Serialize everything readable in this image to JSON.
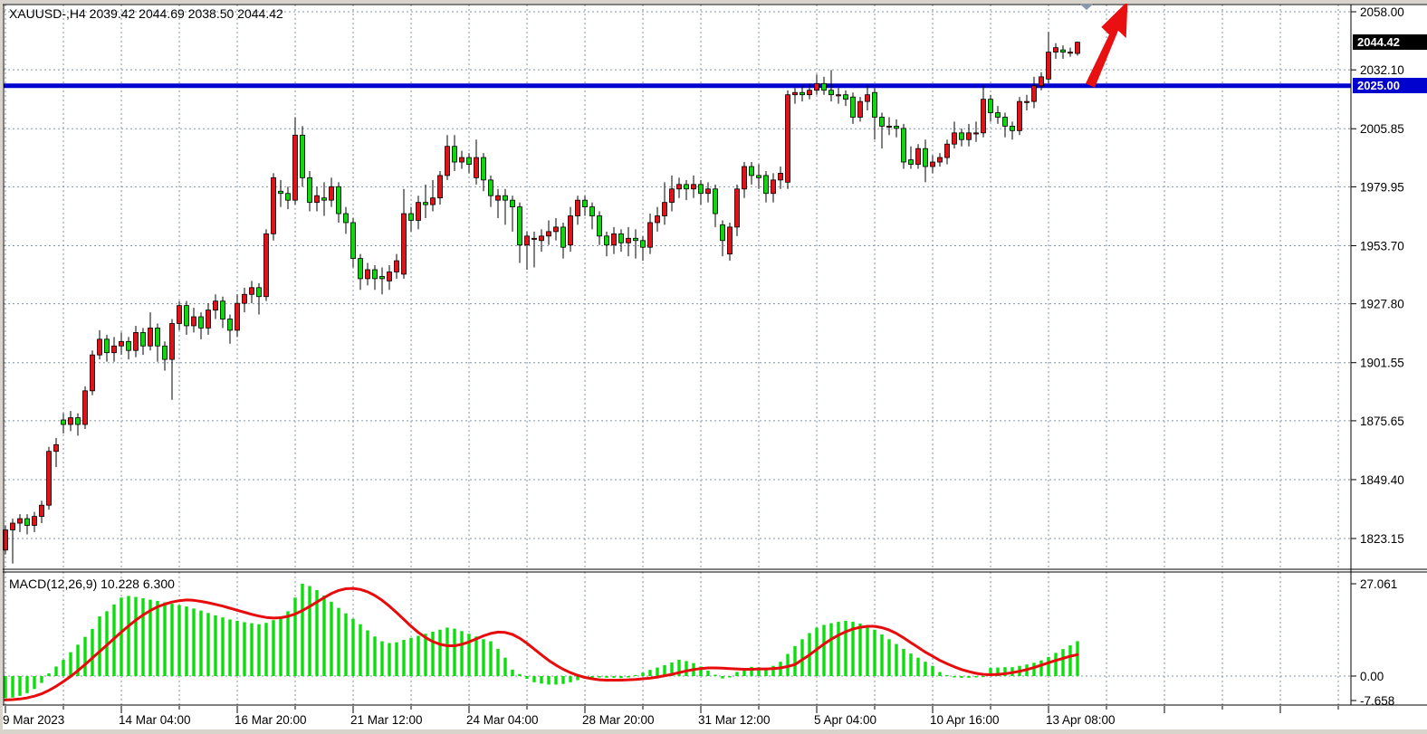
{
  "header": {
    "symbol_title": "XAUUSD-,H4 2039.42 2044.69 2038.50 2044.42"
  },
  "macd_pane": {
    "label_full": "MACD(12,26,9) 10.228 6.300"
  },
  "tags": {
    "last_price": "2044.42",
    "hline_price": "2025.00"
  },
  "axis": {
    "price_ticks": [
      "2058.00",
      "2032.10",
      "2005.85",
      "1979.95",
      "1953.70",
      "1927.80",
      "1901.55",
      "1875.65",
      "1849.40",
      "1823.15"
    ],
    "time_ticks": [
      "9 Mar 2023",
      "14 Mar 04:00",
      "16 Mar 20:00",
      "21 Mar 12:00",
      "24 Mar 04:00",
      "28 Mar 20:00",
      "31 Mar 12:00",
      "5 Apr 04:00",
      "10 Apr 16:00",
      "13 Apr 08:00"
    ],
    "macd_ticks": [
      "27.061",
      "0.00",
      "-7.658"
    ]
  },
  "colors": {
    "bull": "#e31219",
    "bear": "#0fd60f",
    "wick": "#000000",
    "grid": "#8295aa",
    "hline": "#0202cf",
    "macd_hist": "#0ddd0d",
    "macd_signal": "#e80b0b",
    "tag_last_bg": "#000000",
    "tag_line_bg": "#0202cf",
    "arrow": "#e81010",
    "shift_marker": "#8898a8"
  },
  "chart_data": {
    "type": "candlestick",
    "symbol": "XAUUSD-",
    "timeframe": "H4",
    "last_ohlc": {
      "open": 2039.42,
      "high": 2044.69,
      "low": 2038.5,
      "close": 2044.42
    },
    "horizontal_line": 2025.0,
    "price_axis_range": [
      1823.15,
      2058.0
    ],
    "grid": true,
    "candles_ohlc": [
      [
        1818,
        1829,
        1816,
        1827
      ],
      [
        1827,
        1832,
        1812,
        1830
      ],
      [
        1830,
        1834,
        1826,
        1832
      ],
      [
        1832,
        1834,
        1825,
        1829
      ],
      [
        1829,
        1835,
        1826,
        1833
      ],
      [
        1833,
        1840,
        1830,
        1838
      ],
      [
        1838,
        1864,
        1836,
        1862
      ],
      [
        1862,
        1868,
        1855,
        1865
      ],
      [
        1876,
        1879,
        1870,
        1874
      ],
      [
        1874,
        1880,
        1871,
        1877
      ],
      [
        1877,
        1879,
        1869,
        1874
      ],
      [
        1874,
        1891,
        1872,
        1889
      ],
      [
        1889,
        1907,
        1887,
        1905
      ],
      [
        1905,
        1916,
        1903,
        1912
      ],
      [
        1912,
        1914,
        1902,
        1906
      ],
      [
        1906,
        1913,
        1902,
        1909
      ],
      [
        1909,
        1915,
        1905,
        1911
      ],
      [
        1911,
        1913,
        1903,
        1907
      ],
      [
        1907,
        1918,
        1904,
        1915
      ],
      [
        1915,
        1917,
        1905,
        1909
      ],
      [
        1909,
        1924,
        1907,
        1917
      ],
      [
        1917,
        1919,
        1902,
        1909
      ],
      [
        1909,
        1911,
        1898,
        1903
      ],
      [
        1903,
        1921,
        1885,
        1919
      ],
      [
        1919,
        1929,
        1916,
        1927
      ],
      [
        1927,
        1929,
        1914,
        1918
      ],
      [
        1918,
        1926,
        1915,
        1922
      ],
      [
        1922,
        1924,
        1912,
        1917
      ],
      [
        1917,
        1928,
        1914,
        1925
      ],
      [
        1925,
        1932,
        1921,
        1929
      ],
      [
        1929,
        1931,
        1917,
        1921
      ],
      [
        1921,
        1923,
        1910,
        1916
      ],
      [
        1916,
        1932,
        1913,
        1928
      ],
      [
        1928,
        1935,
        1924,
        1932
      ],
      [
        1932,
        1938,
        1928,
        1935
      ],
      [
        1935,
        1937,
        1923,
        1931
      ],
      [
        1931,
        1961,
        1929,
        1959
      ],
      [
        1959,
        1986,
        1956,
        1984
      ],
      [
        1978,
        1983,
        1971,
        1977
      ],
      [
        1977,
        1980,
        1970,
        1974
      ],
      [
        1974,
        2011,
        1972,
        2003
      ],
      [
        2003,
        2007,
        1980,
        1984
      ],
      [
        1984,
        1987,
        1969,
        1973
      ],
      [
        1973,
        1980,
        1969,
        1976
      ],
      [
        1975,
        1982,
        1967,
        1974
      ],
      [
        1974,
        1984,
        1971,
        1980
      ],
      [
        1980,
        1982,
        1964,
        1968
      ],
      [
        1968,
        1971,
        1959,
        1964
      ],
      [
        1964,
        1966,
        1944,
        1948
      ],
      [
        1948,
        1950,
        1934,
        1939
      ],
      [
        1939,
        1946,
        1936,
        1943
      ],
      [
        1943,
        1945,
        1934,
        1939
      ],
      [
        1940,
        1944,
        1932,
        1939
      ],
      [
        1938,
        1945,
        1934,
        1942
      ],
      [
        1942,
        1950,
        1939,
        1947
      ],
      [
        1941,
        1979,
        1939,
        1968
      ],
      [
        1968,
        1971,
        1960,
        1965
      ],
      [
        1965,
        1976,
        1961,
        1973
      ],
      [
        1973,
        1981,
        1966,
        1972
      ],
      [
        1972,
        1983,
        1969,
        1975
      ],
      [
        1975,
        1987,
        1972,
        1985
      ],
      [
        1985,
        2003,
        1983,
        1998
      ],
      [
        1998,
        2003,
        1987,
        1991
      ],
      [
        1991,
        1996,
        1988,
        1993
      ],
      [
        1993,
        1995,
        1986,
        1990
      ],
      [
        1984,
        2001,
        1981,
        1993
      ],
      [
        1993,
        1995,
        1978,
        1983
      ],
      [
        1983,
        1985,
        1971,
        1976
      ],
      [
        1974,
        1979,
        1966,
        1976
      ],
      [
        1976,
        1979,
        1963,
        1974
      ],
      [
        1974,
        1976,
        1960,
        1971
      ],
      [
        1971,
        1973,
        1946,
        1954
      ],
      [
        1954,
        1960,
        1943,
        1958
      ],
      [
        1957,
        1960,
        1944,
        1957
      ],
      [
        1956,
        1961,
        1951,
        1958
      ],
      [
        1958,
        1965,
        1954,
        1960
      ],
      [
        1960,
        1966,
        1956,
        1962
      ],
      [
        1962,
        1964,
        1948,
        1953
      ],
      [
        1954,
        1971,
        1951,
        1967
      ],
      [
        1967,
        1976,
        1963,
        1974
      ],
      [
        1974,
        1976,
        1967,
        1971
      ],
      [
        1971,
        1973,
        1961,
        1967
      ],
      [
        1967,
        1969,
        1954,
        1958
      ],
      [
        1958,
        1960,
        1949,
        1954
      ],
      [
        1954,
        1962,
        1950,
        1959
      ],
      [
        1959,
        1961,
        1951,
        1955
      ],
      [
        1955,
        1962,
        1949,
        1957
      ],
      [
        1957,
        1961,
        1948,
        1956
      ],
      [
        1956,
        1958,
        1947,
        1953
      ],
      [
        1953,
        1968,
        1950,
        1964
      ],
      [
        1964,
        1971,
        1960,
        1967
      ],
      [
        1967,
        1982,
        1963,
        1973
      ],
      [
        1973,
        1985,
        1969,
        1979
      ],
      [
        1979,
        1984,
        1975,
        1981
      ],
      [
        1981,
        1983,
        1974,
        1979
      ],
      [
        1979,
        1985,
        1975,
        1981
      ],
      [
        1981,
        1983,
        1972,
        1977
      ],
      [
        1977,
        1982,
        1973,
        1979
      ],
      [
        1979,
        1981,
        1962,
        1968
      ],
      [
        1963,
        1965,
        1949,
        1956
      ],
      [
        1950,
        1964,
        1947,
        1962
      ],
      [
        1962,
        1981,
        1958,
        1979
      ],
      [
        1979,
        1991,
        1975,
        1989
      ],
      [
        1989,
        1991,
        1981,
        1985
      ],
      [
        1985,
        1990,
        1979,
        1984
      ],
      [
        1985,
        1987,
        1973,
        1977
      ],
      [
        1977,
        1986,
        1973,
        1983
      ],
      [
        1983,
        1989,
        1979,
        1986
      ],
      [
        1982,
        2023,
        1979,
        2021
      ],
      [
        2021,
        2024,
        2017,
        2022
      ],
      [
        2022,
        2025,
        2018,
        2021
      ],
      [
        2021,
        2026,
        2019,
        2023
      ],
      [
        2023,
        2030,
        2021,
        2026
      ],
      [
        2026,
        2029,
        2021,
        2023
      ],
      [
        2023,
        2032,
        2018,
        2021
      ],
      [
        2021,
        2024,
        2017,
        2021
      ],
      [
        2021,
        2023,
        2016,
        2019
      ],
      [
        2020,
        2022,
        2008,
        2011
      ],
      [
        2011,
        2020,
        2009,
        2018
      ],
      [
        2018,
        2025,
        2014,
        2021
      ],
      [
        2022,
        2024,
        2001,
        2011
      ],
      [
        2011,
        2013,
        1997,
        2007
      ],
      [
        2007,
        2011,
        2003,
        2007
      ],
      [
        2007,
        2010,
        2002,
        2006
      ],
      [
        2006,
        2008,
        1988,
        1991
      ],
      [
        1992,
        1998,
        1988,
        1990
      ],
      [
        1990,
        1999,
        1988,
        1997
      ],
      [
        1997,
        2001,
        1982,
        1989
      ],
      [
        1989,
        1994,
        1986,
        1991
      ],
      [
        1991,
        1995,
        1989,
        1993
      ],
      [
        1993,
        2001,
        1990,
        1999
      ],
      [
        1999,
        2009,
        1997,
        2004
      ],
      [
        2004,
        2006,
        1998,
        2001
      ],
      [
        2001,
        2008,
        1998,
        2004
      ],
      [
        2004,
        2009,
        2000,
        2004
      ],
      [
        2004,
        2025,
        2002,
        2019
      ],
      [
        2019,
        2021,
        2009,
        2013
      ],
      [
        2013,
        2016,
        2008,
        2011
      ],
      [
        2011,
        2013,
        2002,
        2007
      ],
      [
        2007,
        2009,
        2001,
        2005
      ],
      [
        2005,
        2020,
        2003,
        2018
      ],
      [
        2018,
        2021,
        2014,
        2018
      ],
      [
        2018,
        2029,
        2015,
        2025
      ],
      [
        2025,
        2031,
        2023,
        2029
      ],
      [
        2028,
        2049,
        2026,
        2040
      ],
      [
        2040,
        2044,
        2037,
        2042
      ],
      [
        2041,
        2043,
        2037,
        2040
      ],
      [
        2040,
        2042,
        2038,
        2040
      ],
      [
        2039.42,
        2044.69,
        2038.5,
        2044.42
      ]
    ],
    "indicator": {
      "name": "MACD",
      "params": [
        12,
        26,
        9
      ],
      "current_macd": 10.228,
      "current_signal": 6.3,
      "scale": {
        "max": 27.061,
        "zero": 0.0,
        "min": -7.658
      },
      "histogram": [
        -6.5,
        -6.3,
        -5.8,
        -5.0,
        -3.8,
        -2.0,
        0.8,
        2.8,
        4.8,
        7.0,
        9.2,
        11.5,
        13.8,
        17.5,
        19.0,
        21.0,
        23.0,
        23.5,
        23.2,
        22.8,
        22.4,
        22.0,
        21.6,
        21.2,
        20.8,
        20.4,
        19.8,
        19.2,
        18.5,
        17.8,
        17.2,
        16.6,
        16.2,
        15.8,
        15.5,
        15.2,
        15.6,
        16.4,
        17.5,
        19.0,
        23.0,
        27.06,
        26.4,
        25.2,
        23.6,
        21.8,
        20.0,
        18.4,
        16.8,
        15.2,
        13.4,
        11.6,
        10.2,
        9.7,
        9.9,
        10.6,
        11.2,
        11.8,
        12.4,
        13.0,
        13.6,
        14.2,
        13.9,
        13.2,
        12.4,
        11.6,
        10.8,
        10.2,
        8.0,
        5.4,
        1.9,
        0.6,
        -0.8,
        -1.8,
        -2.2,
        -2.5,
        -2.5,
        -2.3,
        -1.8,
        -1.2,
        -0.8,
        -0.5,
        -0.4,
        -0.5,
        -0.5,
        -0.6,
        -0.4,
        0.3,
        1.0,
        1.8,
        2.5,
        3.2,
        4.0,
        4.8,
        4.4,
        3.8,
        2.8,
        1.6,
        0.4,
        -0.7,
        -0.4,
        1.2,
        2.2,
        2.7,
        2.6,
        2.3,
        3.0,
        4.2,
        6.5,
        8.8,
        10.8,
        12.6,
        14.2,
        15.0,
        15.5,
        15.9,
        16.2,
        15.9,
        15.4,
        14.7,
        13.6,
        12.2,
        10.8,
        9.4,
        8.0,
        6.6,
        5.4,
        4.2,
        3.0,
        1.2,
        0.3,
        -0.4,
        -0.5,
        -0.5,
        -0.4,
        -0.3,
        2.4,
        2.5,
        2.6,
        2.6,
        3.0,
        3.4,
        3.9,
        4.6,
        5.6,
        6.8,
        7.9,
        9.0,
        10.228
      ],
      "signal": [
        -7.0,
        -6.9,
        -6.7,
        -6.4,
        -5.9,
        -5.2,
        -4.2,
        -3.0,
        -1.6,
        -0.1,
        1.6,
        3.4,
        5.3,
        7.2,
        9.1,
        11.0,
        12.9,
        14.7,
        16.4,
        17.9,
        19.2,
        20.3,
        21.1,
        21.7,
        22.1,
        22.3,
        22.2,
        21.9,
        21.5,
        21.0,
        20.5,
        19.9,
        19.3,
        18.7,
        18.1,
        17.6,
        17.2,
        17.0,
        17.1,
        17.5,
        18.2,
        19.2,
        20.4,
        21.7,
        23.0,
        24.2,
        25.1,
        25.6,
        25.7,
        25.4,
        24.7,
        23.6,
        22.2,
        20.5,
        18.6,
        16.6,
        14.6,
        12.8,
        11.3,
        10.1,
        9.3,
        8.9,
        8.9,
        9.3,
        10.0,
        10.9,
        11.8,
        12.5,
        12.9,
        12.8,
        12.2,
        11.1,
        9.6,
        7.9,
        6.2,
        4.6,
        3.2,
        2.0,
        1.0,
        0.2,
        -0.4,
        -0.8,
        -1.1,
        -1.2,
        -1.2,
        -1.2,
        -1.1,
        -1.0,
        -0.8,
        -0.6,
        -0.3,
        0.1,
        0.5,
        1.0,
        1.5,
        1.9,
        2.2,
        2.4,
        2.4,
        2.3,
        2.2,
        2.1,
        2.0,
        2.0,
        2.1,
        2.1,
        2.2,
        2.4,
        2.8,
        3.4,
        4.8,
        6.2,
        7.8,
        9.4,
        10.8,
        12.0,
        13.0,
        13.8,
        14.3,
        14.6,
        14.6,
        14.2,
        13.5,
        12.5,
        11.2,
        9.8,
        8.4,
        7.0,
        5.8,
        4.6,
        3.6,
        2.7,
        1.9,
        1.3,
        0.8,
        0.5,
        0.4,
        0.5,
        0.7,
        1.0,
        1.4,
        1.9,
        2.5,
        3.2,
        3.9,
        4.6,
        5.2,
        5.8,
        6.3
      ]
    },
    "annotations": [
      {
        "type": "up-arrow",
        "color": "#e81010"
      },
      {
        "type": "chart-shift-marker",
        "color": "#8898a8"
      }
    ]
  }
}
